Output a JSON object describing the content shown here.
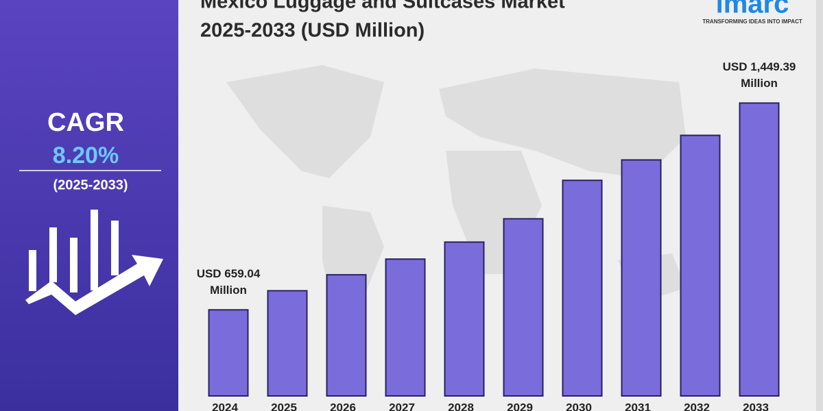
{
  "panel": {
    "label": "CAGR",
    "value": "8.20%",
    "period": "(2025-2033)"
  },
  "logo": {
    "name": "imarc",
    "tagline": "TRANSFORMING IDEAS INTO IMPACT"
  },
  "chart_data": {
    "type": "bar",
    "title": [
      "Mexico Luggage and Suitcases Market",
      "2025-2033 (USD Million)"
    ],
    "categories": [
      "2024",
      "2025",
      "2026",
      "2027",
      "2028",
      "2029",
      "2030",
      "2031",
      "2032",
      "2033"
    ],
    "values": [
      659.04,
      732,
      793,
      853,
      918,
      1007,
      1154,
      1232,
      1326,
      1449.39
    ],
    "value_labels": [
      "USD 659.04 Million",
      null,
      null,
      null,
      null,
      null,
      null,
      null,
      null,
      "USD 1,449.39 Million"
    ],
    "color": "#7b6cdc",
    "ylim": [
      330,
      1550
    ]
  }
}
